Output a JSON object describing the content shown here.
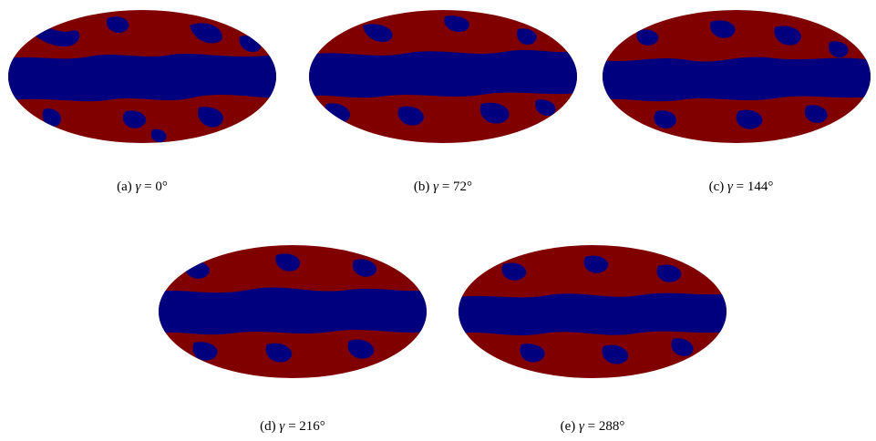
{
  "colors": {
    "background": "#ffffff",
    "map_red": "#800000",
    "map_blue": "#00007f"
  },
  "panels": [
    {
      "id": "a",
      "caption_prefix": "(a)",
      "gamma_symbol": "γ",
      "caption_value": "= 0°"
    },
    {
      "id": "b",
      "caption_prefix": "(b)",
      "gamma_symbol": "γ",
      "caption_value": "= 72°"
    },
    {
      "id": "c",
      "caption_prefix": "(c)",
      "gamma_symbol": "γ",
      "caption_value": "= 144°"
    },
    {
      "id": "d",
      "caption_prefix": "(d)",
      "gamma_symbol": "γ",
      "caption_value": "= 216°"
    },
    {
      "id": "e",
      "caption_prefix": "(e)",
      "gamma_symbol": "γ",
      "caption_value": "= 288°"
    }
  ]
}
